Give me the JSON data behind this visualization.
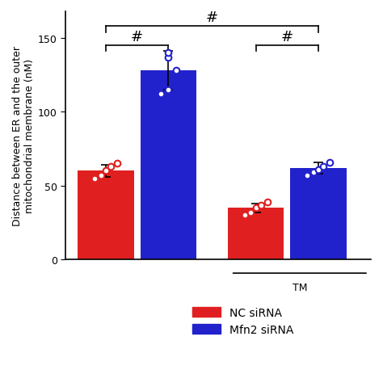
{
  "bar_values": [
    60,
    128,
    35,
    62
  ],
  "bar_errors": [
    4,
    13,
    3,
    4
  ],
  "dot_values": [
    [
      55,
      57,
      60,
      63,
      65
    ],
    [
      112,
      115,
      128,
      137,
      140
    ],
    [
      30,
      32,
      35,
      37,
      39
    ],
    [
      57,
      59,
      61,
      63,
      66
    ]
  ],
  "bar_colors": [
    "#e02020",
    "#2222cc",
    "#e02020",
    "#2222cc"
  ],
  "dot_colors": [
    "#e02020",
    "#2222cc",
    "#e02020",
    "#2222cc"
  ],
  "positions": [
    0.0,
    0.5,
    1.2,
    1.7
  ],
  "bar_width": 0.45,
  "ylabel": "Distance between ER and the outer\nmitochondrial membrane (nM)",
  "ylim": [
    0,
    168
  ],
  "yticks": [
    0,
    50,
    100,
    150
  ],
  "xlim": [
    -0.32,
    2.12
  ],
  "tm_x1": 1.0,
  "tm_x2": 2.1,
  "tm_y": -0.055,
  "tm_label": "TM",
  "legend_labels": [
    "NC siRNA",
    "Mfn2 siRNA"
  ],
  "legend_colors": [
    "#e02020",
    "#2222cc"
  ],
  "background_color": "#ffffff",
  "bracket1_x1": 0.0,
  "bracket1_x2": 0.5,
  "bracket1_y": 145,
  "bracket1_label": "#",
  "bracket2_x1": 0.0,
  "bracket2_x2": 1.7,
  "bracket2_y": 158,
  "bracket2_label": "#",
  "bracket3_x1": 1.2,
  "bracket3_x2": 1.7,
  "bracket3_y": 145,
  "bracket3_label": "#"
}
